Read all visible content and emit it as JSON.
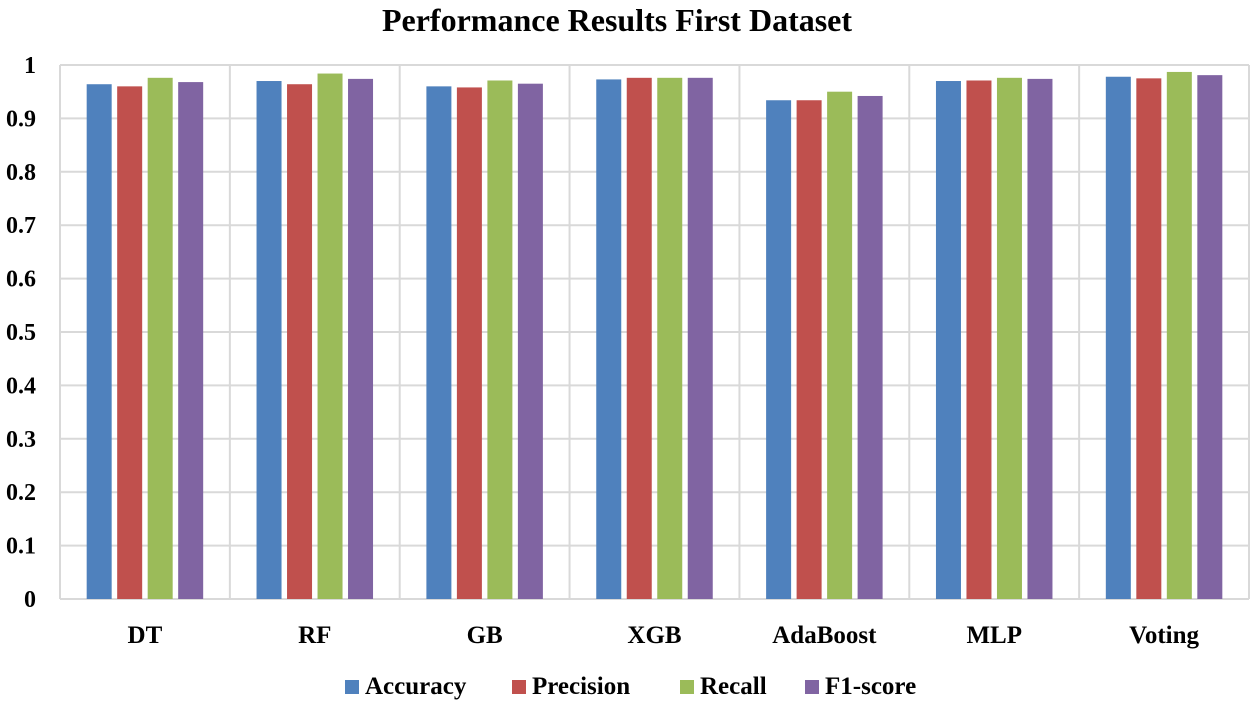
{
  "chart_data": {
    "type": "bar",
    "title": "Performance Results First Dataset",
    "xlabel": "",
    "ylabel": "",
    "ylim": [
      0,
      1
    ],
    "yticks": [
      "0",
      "0.1",
      "0.2",
      "0.3",
      "0.4",
      "0.5",
      "0.6",
      "0.7",
      "0.8",
      "0.9",
      "1"
    ],
    "grid": true,
    "legend_position": "bottom",
    "categories": [
      "DT",
      "RF",
      "GB",
      "XGB",
      "AdaBoost",
      "MLP",
      "Voting"
    ],
    "series": [
      {
        "name": "Accuracy",
        "color": "#4F81BD",
        "values": [
          0.964,
          0.97,
          0.96,
          0.973,
          0.934,
          0.97,
          0.978
        ]
      },
      {
        "name": "Precision",
        "color": "#C0504D",
        "values": [
          0.96,
          0.964,
          0.958,
          0.976,
          0.934,
          0.971,
          0.975
        ]
      },
      {
        "name": "Recall",
        "color": "#9BBB59",
        "values": [
          0.976,
          0.984,
          0.971,
          0.976,
          0.95,
          0.976,
          0.987
        ]
      },
      {
        "name": "F1-score",
        "color": "#8064A2",
        "values": [
          0.968,
          0.974,
          0.965,
          0.976,
          0.942,
          0.974,
          0.981
        ]
      }
    ]
  }
}
